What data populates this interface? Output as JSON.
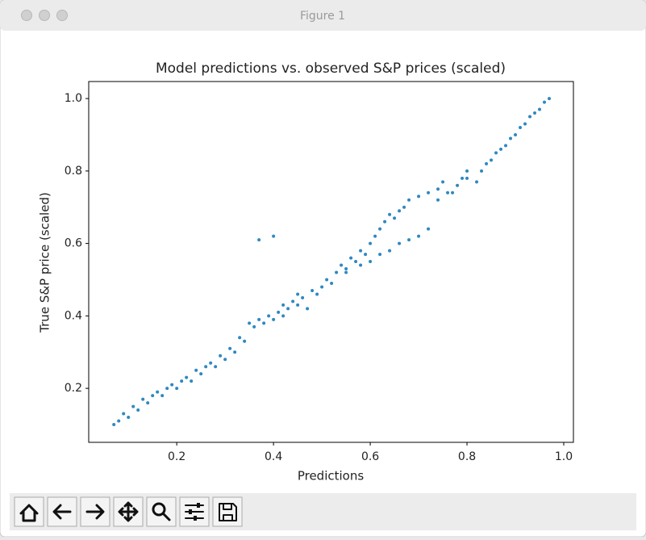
{
  "window_title": "Figure 1",
  "chart_data": {
    "type": "scatter",
    "title": "Model predictions vs. observed S&P prices (scaled)",
    "x_label": "Predictions",
    "y_label": "True S&P price (scaled)",
    "color": "#2e88c0",
    "xlim": [
      0.018,
      1.02
    ],
    "ylim": [
      0.051,
      1.047
    ],
    "xticks": [
      {
        "value": 0.2,
        "label": "0.2"
      },
      {
        "value": 0.4,
        "label": "0.4"
      },
      {
        "value": 0.6,
        "label": "0.6"
      },
      {
        "value": 0.8,
        "label": "0.8"
      },
      {
        "value": 1.0,
        "label": "1.0"
      }
    ],
    "yticks": [
      {
        "value": 0.2,
        "label": "0.2"
      },
      {
        "value": 0.4,
        "label": "0.4"
      },
      {
        "value": 0.6,
        "label": "0.6"
      },
      {
        "value": 0.8,
        "label": "0.8"
      },
      {
        "value": 1.0,
        "label": "1.0"
      }
    ],
    "x": [
      0.07,
      0.08,
      0.09,
      0.1,
      0.11,
      0.12,
      0.13,
      0.14,
      0.15,
      0.16,
      0.17,
      0.18,
      0.19,
      0.2,
      0.21,
      0.22,
      0.23,
      0.24,
      0.25,
      0.26,
      0.27,
      0.28,
      0.29,
      0.3,
      0.31,
      0.32,
      0.33,
      0.34,
      0.35,
      0.36,
      0.37,
      0.38,
      0.39,
      0.4,
      0.41,
      0.42,
      0.42,
      0.43,
      0.44,
      0.45,
      0.45,
      0.46,
      0.47,
      0.48,
      0.49,
      0.5,
      0.51,
      0.52,
      0.53,
      0.54,
      0.55,
      0.56,
      0.57,
      0.58,
      0.59,
      0.6,
      0.61,
      0.62,
      0.63,
      0.64,
      0.65,
      0.66,
      0.67,
      0.68,
      0.7,
      0.72,
      0.74,
      0.75,
      0.77,
      0.79,
      0.8,
      0.55,
      0.58,
      0.6,
      0.62,
      0.64,
      0.66,
      0.68,
      0.7,
      0.72,
      0.74,
      0.76,
      0.78,
      0.8,
      0.82,
      0.83,
      0.84,
      0.85,
      0.86,
      0.87,
      0.88,
      0.89,
      0.9,
      0.91,
      0.92,
      0.93,
      0.94,
      0.95,
      0.96,
      0.97,
      0.37,
      0.4
    ],
    "y": [
      0.1,
      0.11,
      0.13,
      0.12,
      0.15,
      0.14,
      0.17,
      0.16,
      0.18,
      0.19,
      0.18,
      0.2,
      0.21,
      0.2,
      0.22,
      0.23,
      0.22,
      0.25,
      0.24,
      0.26,
      0.27,
      0.26,
      0.29,
      0.28,
      0.31,
      0.3,
      0.34,
      0.33,
      0.38,
      0.37,
      0.39,
      0.38,
      0.4,
      0.39,
      0.41,
      0.4,
      0.43,
      0.42,
      0.44,
      0.43,
      0.46,
      0.45,
      0.42,
      0.47,
      0.46,
      0.48,
      0.5,
      0.49,
      0.52,
      0.54,
      0.53,
      0.56,
      0.55,
      0.58,
      0.57,
      0.6,
      0.62,
      0.64,
      0.66,
      0.68,
      0.67,
      0.69,
      0.7,
      0.72,
      0.73,
      0.74,
      0.75,
      0.77,
      0.74,
      0.78,
      0.8,
      0.52,
      0.54,
      0.55,
      0.57,
      0.58,
      0.6,
      0.61,
      0.62,
      0.64,
      0.72,
      0.74,
      0.76,
      0.78,
      0.77,
      0.8,
      0.82,
      0.83,
      0.85,
      0.86,
      0.87,
      0.89,
      0.9,
      0.92,
      0.93,
      0.95,
      0.96,
      0.97,
      0.99,
      1.0,
      0.61,
      0.62
    ]
  }
}
